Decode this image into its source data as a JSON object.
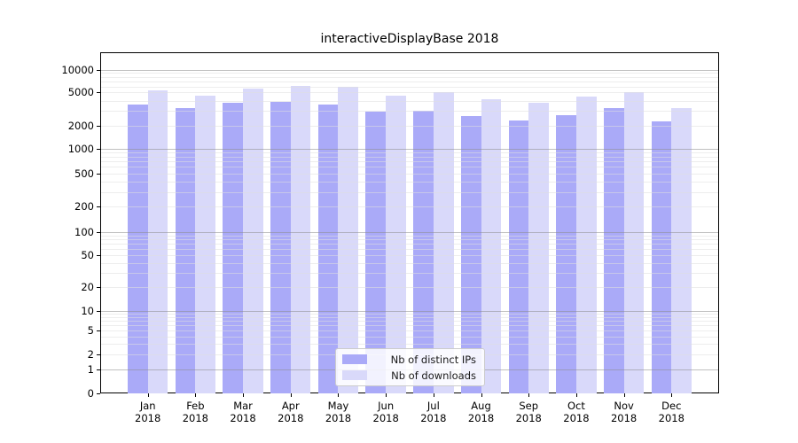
{
  "title": "interactiveDisplayBase 2018",
  "chart_data": {
    "type": "bar",
    "title": "interactiveDisplayBase 2018",
    "xlabel": "",
    "ylabel": "",
    "yscale": "symlog",
    "ylim": [
      0,
      15000
    ],
    "y_ticks": [
      0,
      1,
      2,
      5,
      10,
      20,
      50,
      100,
      200,
      500,
      1000,
      2000,
      5000,
      10000
    ],
    "grid": {
      "horizontal": true,
      "major_gridlines_at": [
        1,
        10,
        100,
        1000,
        10000
      ],
      "minor_gridlines": "2-9 per decade"
    },
    "legend_position": "inside-bottom-center",
    "categories": [
      "Jan",
      "Feb",
      "Mar",
      "Apr",
      "May",
      "Jun",
      "Jul",
      "Aug",
      "Sep",
      "Oct",
      "Nov",
      "Dec"
    ],
    "x_tick_year": "2018",
    "series": [
      {
        "name": "Nb of distinct IPs",
        "color": "#aaaaf8",
        "values": [
          3600,
          3300,
          3800,
          3900,
          3600,
          2950,
          3050,
          2600,
          2350,
          2700,
          3300,
          2250
        ]
      },
      {
        "name": "Nb of downloads",
        "color": "#d9d9fa",
        "values": [
          5300,
          4600,
          5600,
          6050,
          6000,
          4550,
          5100,
          4200,
          3800,
          4450,
          5000,
          3250
        ]
      }
    ]
  }
}
